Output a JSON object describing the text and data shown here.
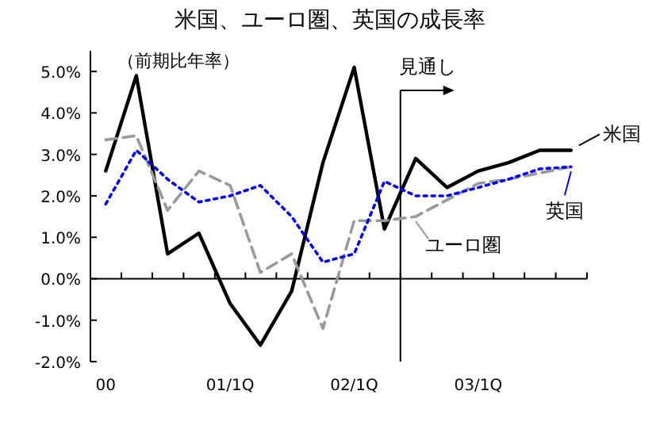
{
  "chart_data": {
    "type": "line",
    "title": "米国、ユーロ圏、英国の成長率",
    "ylabel": "（前期比年率）",
    "x": [
      "2000-02-15",
      "2000-05-15",
      "2000-08-15",
      "2000-11-15",
      "2001-02-15",
      "2001-05-15",
      "2001-08-15",
      "2001-11-15",
      "2002-02-15",
      "2002-05-15",
      "2002-08-15",
      "2002-11-15",
      "2003-02-15",
      "2003-05-15",
      "2003-08-15",
      "2003-11-15"
    ],
    "series": [
      {
        "name": "米国",
        "color": "#000000",
        "line_style": "solid",
        "values": [
          2.6,
          4.9,
          0.6,
          1.1,
          -0.6,
          -1.6,
          -0.3,
          2.8,
          5.1,
          1.2,
          2.9,
          2.2,
          2.6,
          2.8,
          3.1,
          3.1
        ]
      },
      {
        "name": "ユーロ圏",
        "color": "#999999",
        "line_style": "dashed",
        "values": [
          3.35,
          3.45,
          1.65,
          2.6,
          2.25,
          0.15,
          0.6,
          -1.2,
          1.4,
          1.4,
          1.5,
          1.9,
          2.3,
          2.4,
          2.55,
          2.7
        ]
      },
      {
        "name": "英国",
        "color": "#0000ff",
        "line_style": "dotted",
        "values": [
          1.8,
          3.1,
          2.4,
          1.85,
          2.0,
          2.25,
          1.5,
          0.4,
          0.6,
          2.35,
          2.0,
          2.0,
          2.2,
          2.4,
          2.65,
          2.7
        ]
      }
    ],
    "xlim": [
      "2000-01-01",
      "2004-01-01"
    ],
    "xticks": [
      {
        "value": "2000-01-01",
        "label": null
      },
      {
        "value": "2000-04-01",
        "label": null
      },
      {
        "value": "2000-07-01",
        "label": null
      },
      {
        "value": "2000-10-01",
        "label": null
      },
      {
        "value": "2001-01-01",
        "label": null
      },
      {
        "value": "2001-04-01",
        "label": null
      },
      {
        "value": "2001-07-01",
        "label": null
      },
      {
        "value": "2001-10-01",
        "label": null
      },
      {
        "value": "2002-01-01",
        "label": null
      },
      {
        "value": "2002-04-01",
        "label": null
      },
      {
        "value": "2002-07-01",
        "label": null
      },
      {
        "value": "2002-10-01",
        "label": null
      },
      {
        "value": "2003-01-01",
        "label": null
      },
      {
        "value": "2003-04-01",
        "label": null
      },
      {
        "value": "2003-07-01",
        "label": null
      },
      {
        "value": "2003-10-01",
        "label": null
      },
      {
        "value": "2004-01-01",
        "label": null
      },
      {
        "value": "2000-02-15",
        "label": "00"
      },
      {
        "value": "2001-02-15",
        "label": "01/1Q"
      },
      {
        "value": "2002-02-15",
        "label": "02/1Q"
      },
      {
        "value": "2003-02-15",
        "label": "03/1Q"
      }
    ],
    "ylim": [
      -2.0,
      5.5
    ],
    "yticks": [
      {
        "value": -2,
        "label": "-2.0%"
      },
      {
        "value": -1,
        "label": "-1.0%"
      },
      {
        "value": 0,
        "label": "0.0%"
      },
      {
        "value": 1,
        "label": "1.0%"
      },
      {
        "value": 2,
        "label": "2.0%"
      },
      {
        "value": 3,
        "label": "3.0%"
      },
      {
        "value": 4,
        "label": "4.0%"
      },
      {
        "value": 5,
        "label": "5.0%"
      }
    ],
    "ref_lines": [
      {
        "axis": "x",
        "value": "2002-07-01",
        "label": "見通し",
        "color": "#000000"
      }
    ],
    "legend": "right"
  }
}
